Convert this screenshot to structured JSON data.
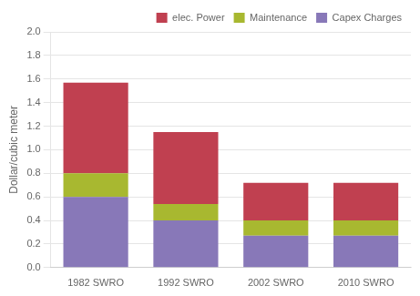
{
  "chart_data": {
    "type": "bar",
    "stacked": true,
    "grid": true,
    "legend": "upper right",
    "categories": [
      "1982 SWRO",
      "1992 SWRO",
      "2002 SWRO",
      "2010 SWRO"
    ],
    "ylabel": "Dollar/cubic meter",
    "series": [
      {
        "name": "Capex Charges",
        "color": "#8878b8",
        "values": [
          0.6,
          0.4,
          0.27,
          0.27
        ]
      },
      {
        "name": "Maintenance",
        "color": "#a8b830",
        "values": [
          0.2,
          0.14,
          0.13,
          0.13
        ]
      },
      {
        "name": "elec. Power",
        "color": "#c04050",
        "values": [
          0.77,
          0.61,
          0.32,
          0.32
        ]
      }
    ],
    "ylim": [
      0,
      2.0
    ],
    "yticks": [
      {
        "value": 0,
        "label": "0.0"
      },
      {
        "value": 0.2,
        "label": "0.2"
      },
      {
        "value": 0.4,
        "label": "0.4"
      },
      {
        "value": 0.6,
        "label": "0.6"
      },
      {
        "value": 0.8,
        "label": "0.8"
      },
      {
        "value": 1.0,
        "label": "1.0"
      },
      {
        "value": 1.2,
        "label": "1.2"
      },
      {
        "value": 1.4,
        "label": "1.4"
      },
      {
        "value": 1.6,
        "label": "1.6"
      },
      {
        "value": 1.8,
        "label": "1.8"
      },
      {
        "value": 2.0,
        "label": "2.0"
      }
    ]
  }
}
